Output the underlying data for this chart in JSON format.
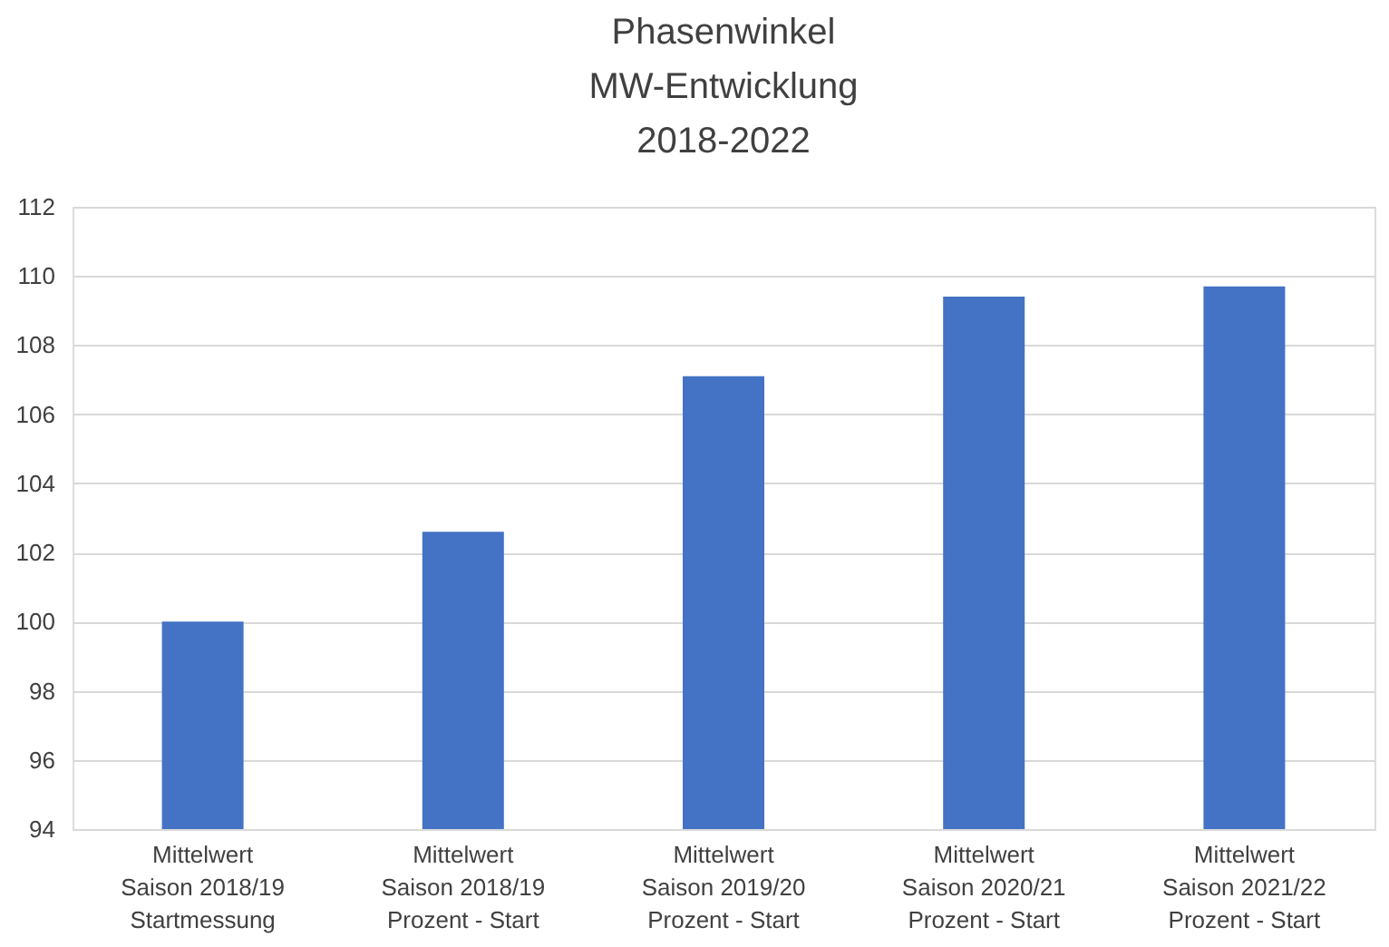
{
  "chart_data": {
    "type": "bar",
    "title": "Phasenwinkel\nMW-Entwicklung\n2018-2022",
    "categories": [
      "Mittelwert\nSaison 2018/19\nStartmessung",
      "Mittelwert\nSaison 2018/19\nProzent - Start",
      "Mittelwert\nSaison 2019/20\nProzent - Start",
      "Mittelwert\nSaison 2020/21\nProzent - Start",
      "Mittelwert\nSaison 2021/22\nProzent - Start"
    ],
    "values": [
      100.0,
      102.6,
      107.1,
      109.4,
      109.7
    ],
    "color": "#4472c4",
    "ylim": [
      94,
      112
    ],
    "yticks": [
      94,
      96,
      98,
      100,
      102,
      104,
      106,
      108,
      110,
      112
    ],
    "grid": "y"
  }
}
